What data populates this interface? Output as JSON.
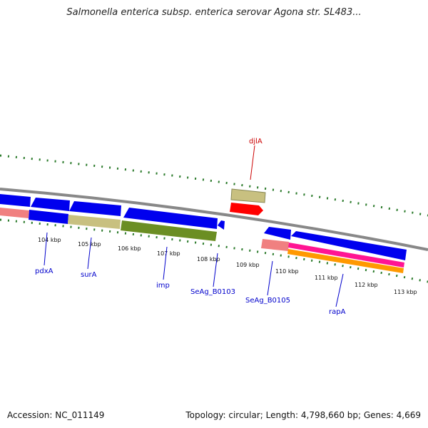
{
  "title": "Salmonella enterica subsp. enterica serovar Agona str. SL483...",
  "footer": {
    "accession": "Accession: NC_011149",
    "stats": "Topology: circular; Length: 4,798,660 bp; Genes: 4,669"
  },
  "colors": {
    "backbone": "#888888",
    "tick": "#2a7a2a",
    "cds_blue": "#0000ee",
    "gene_tan": "#c8c080",
    "gene_olive": "#6b8e23",
    "gene_salmon": "#f08080",
    "gene_red": "#ff0000",
    "gene_magenta": "#ff1493",
    "gene_orange": "#ff9900",
    "label_blue": "#0000cc",
    "label_red": "#cc0000"
  },
  "kbp_ticks": [
    "104 kbp",
    "105 kbp",
    "106 kbp",
    "107 kbp",
    "108 kbp",
    "109 kbp",
    "110 kbp",
    "111 kbp",
    "112 kbp",
    "113 kbp"
  ],
  "gene_labels": {
    "pdxA": "pdxA",
    "surA": "surA",
    "imp": "imp",
    "SeAg_B0103": "SeAg_B0103",
    "SeAg_B0105": "SeAg_B0105",
    "rapA": "rapA",
    "djlA": "djlA"
  }
}
